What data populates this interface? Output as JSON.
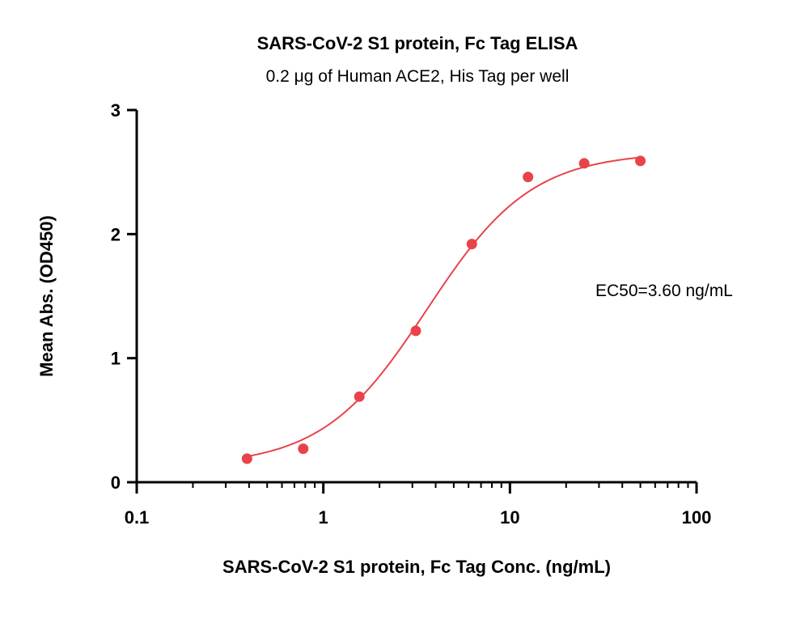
{
  "chart_data": {
    "type": "scatter",
    "title": "SARS-CoV-2 S1 protein, Fc Tag ELISA",
    "subtitle": "0.2 μg of Human ACE2, His Tag per well",
    "xlabel": "SARS-CoV-2 S1 protein, Fc Tag Conc. (ng/mL)",
    "ylabel": "Mean Abs. (OD450)",
    "x_scale": "log",
    "xlim": [
      0.1,
      100
    ],
    "ylim": [
      0,
      3
    ],
    "x_ticks": [
      0.1,
      1,
      10,
      100
    ],
    "x_tick_labels": [
      "0.1",
      "1",
      "10",
      "100"
    ],
    "y_ticks": [
      0,
      1,
      2,
      3
    ],
    "y_tick_labels": [
      "0",
      "1",
      "2",
      "3"
    ],
    "grid": false,
    "series": [
      {
        "x": [
          0.39,
          0.78,
          1.56,
          3.13,
          6.25,
          12.5,
          25,
          50
        ],
        "y": [
          0.19,
          0.27,
          0.69,
          1.22,
          1.92,
          2.46,
          2.57,
          2.59
        ],
        "color": "#e8434a",
        "fit": "4PL",
        "ec50": 3.6
      }
    ],
    "annotation": "EC50=3.60 ng/mL"
  }
}
